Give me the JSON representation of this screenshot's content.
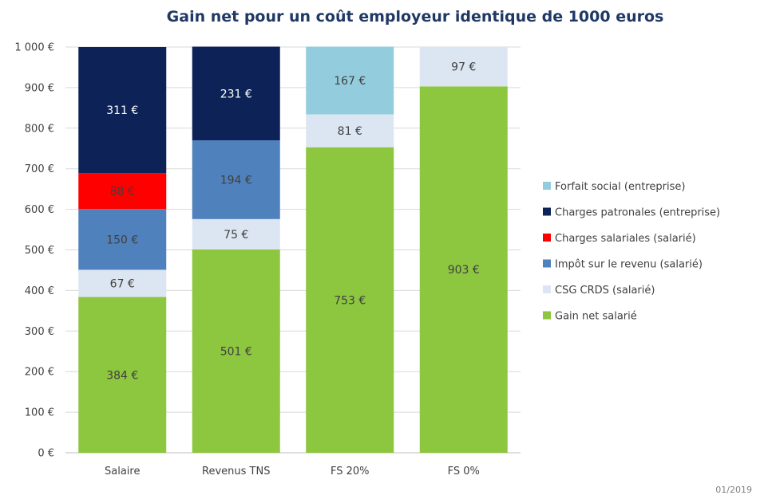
{
  "chart_data": {
    "type": "bar",
    "stacked": true,
    "title": "Gain net pour un coût employeur identique de 1000 euros",
    "categories": [
      "Salaire",
      "Revenus TNS",
      "FS 20%",
      "FS 0%"
    ],
    "ylim": [
      0,
      1000
    ],
    "yticks": [
      "0 €",
      "100 €",
      "200 €",
      "300 €",
      "400 €",
      "500 €",
      "600 €",
      "700 €",
      "800 €",
      "900 €",
      "1 000 €"
    ],
    "grid": true,
    "legend_position": "right",
    "series": [
      {
        "name": "Gain net salarié",
        "color": "#8dc63f",
        "label_color": "#404040",
        "values": [
          384,
          501,
          753,
          903
        ],
        "labels": [
          "384 €",
          "501 €",
          "753 €",
          "903 €"
        ]
      },
      {
        "name": "CSG CRDS (salarié)",
        "color": "#dce6f2",
        "label_color": "#404040",
        "values": [
          67,
          75,
          81,
          97
        ],
        "labels": [
          "67 €",
          "75 €",
          "81 €",
          "97 €"
        ]
      },
      {
        "name": "Impôt sur le revenu (salarié)",
        "color": "#4f81bd",
        "label_color": "#404040",
        "values": [
          150,
          194,
          0,
          0
        ],
        "labels": [
          "150 €",
          "194 €",
          "",
          ""
        ]
      },
      {
        "name": "Charges salariales (salarié)",
        "color": "#ff0000",
        "label_color": "#404040",
        "values": [
          88,
          0,
          0,
          0
        ],
        "labels": [
          "88 €",
          "",
          "",
          ""
        ]
      },
      {
        "name": "Charges patronales (entreprise)",
        "color": "#0d2357",
        "label_color": "#ffffff",
        "values": [
          311,
          231,
          0,
          0
        ],
        "labels": [
          "311 €",
          "231 €",
          "",
          ""
        ]
      },
      {
        "name": "Forfait social (entreprise)",
        "color": "#93cddd",
        "label_color": "#404040",
        "values": [
          0,
          0,
          167,
          0
        ],
        "labels": [
          "",
          "",
          "167 €",
          ""
        ]
      }
    ],
    "legend_order": [
      5,
      4,
      3,
      2,
      1,
      0
    ],
    "gridline_color": "#d9d9d9",
    "axis_color": "#bfbfbf"
  },
  "footnote": "01/2019"
}
